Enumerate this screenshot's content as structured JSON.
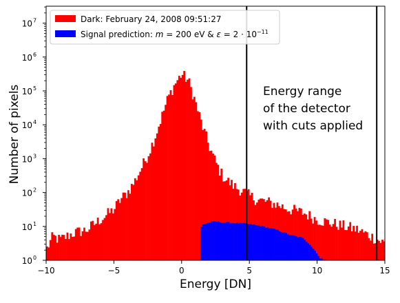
{
  "chart_data": {
    "type": "histogram",
    "xlabel": "Energy [DN]",
    "ylabel": "Number of pixels",
    "xlim": [
      -10,
      15
    ],
    "ylim_log10": [
      0,
      7.5
    ],
    "y_scale": "log",
    "grid": false,
    "legend_position": "top-left",
    "bin_width": 0.125,
    "x_ticks": [
      {
        "value": -10,
        "label": "−10"
      },
      {
        "value": -5,
        "label": "−5"
      },
      {
        "value": 0,
        "label": "0"
      },
      {
        "value": 5,
        "label": "5"
      },
      {
        "value": 10,
        "label": "10"
      },
      {
        "value": 15,
        "label": "15"
      }
    ],
    "y_ticks": [
      {
        "exp": 0,
        "base": "10",
        "sup": "0"
      },
      {
        "exp": 1,
        "base": "10",
        "sup": "1"
      },
      {
        "exp": 2,
        "base": "10",
        "sup": "2"
      },
      {
        "exp": 3,
        "base": "10",
        "sup": "3"
      },
      {
        "exp": 4,
        "base": "10",
        "sup": "4"
      },
      {
        "exp": 5,
        "base": "10",
        "sup": "5"
      },
      {
        "exp": 6,
        "base": "10",
        "sup": "6"
      },
      {
        "exp": 7,
        "base": "10",
        "sup": "7"
      }
    ],
    "series": [
      {
        "name": "Dark: February 24, 2008 09:51:27",
        "color": "#ff0000",
        "log10_profile": [
          [
            -10,
            0.3
          ],
          [
            -9.5,
            0.7
          ],
          [
            -9,
            0.6
          ],
          [
            -8,
            0.8
          ],
          [
            -7,
            0.9
          ],
          [
            -6,
            1.2
          ],
          [
            -5,
            1.5
          ],
          [
            -4.5,
            1.8
          ],
          [
            -4,
            2.0
          ],
          [
            -3.5,
            2.3
          ],
          [
            -3,
            2.7
          ],
          [
            -2.5,
            3.1
          ],
          [
            -2,
            3.6
          ],
          [
            -1.5,
            4.2
          ],
          [
            -1,
            4.8
          ],
          [
            -0.5,
            5.2
          ],
          [
            0,
            5.5
          ],
          [
            0.5,
            5.3
          ],
          [
            1,
            4.7
          ],
          [
            1.5,
            4.0
          ],
          [
            2,
            3.4
          ],
          [
            2.5,
            2.9
          ],
          [
            3,
            2.5
          ],
          [
            3.5,
            2.3
          ],
          [
            4,
            2.15
          ],
          [
            4.5,
            2.05
          ],
          [
            5,
            1.9
          ],
          [
            5.5,
            1.8
          ],
          [
            6,
            1.75
          ],
          [
            7,
            1.65
          ],
          [
            8,
            1.5
          ],
          [
            9,
            1.4
          ],
          [
            10,
            1.2
          ],
          [
            11,
            1.1
          ],
          [
            12,
            1.0
          ],
          [
            13,
            0.9
          ],
          [
            14,
            0.7
          ],
          [
            15,
            0.5
          ]
        ],
        "noise_log10": 0.18
      },
      {
        "name": "Signal prediction: m = 200 eV & ε = 2 · 10⁻¹¹",
        "color": "#0000ff",
        "log10_profile": [
          [
            1.4,
            0.9
          ],
          [
            1.5,
            1.05
          ],
          [
            2.0,
            1.12
          ],
          [
            2.5,
            1.15
          ],
          [
            3.0,
            1.12
          ],
          [
            4.0,
            1.1
          ],
          [
            5.0,
            1.07
          ],
          [
            6.0,
            1.0
          ],
          [
            7.0,
            0.9
          ],
          [
            8.0,
            0.75
          ],
          [
            8.5,
            0.7
          ],
          [
            9.0,
            0.65
          ],
          [
            9.5,
            0.45
          ],
          [
            10.0,
            0.2
          ],
          [
            10.2,
            0.05
          ]
        ],
        "x_range": [
          1.4,
          10.3
        ]
      }
    ],
    "vertical_lines": [
      4.8,
      14.4
    ],
    "annotation": [
      "Energy range",
      "of the detector",
      "with cuts applied"
    ]
  }
}
